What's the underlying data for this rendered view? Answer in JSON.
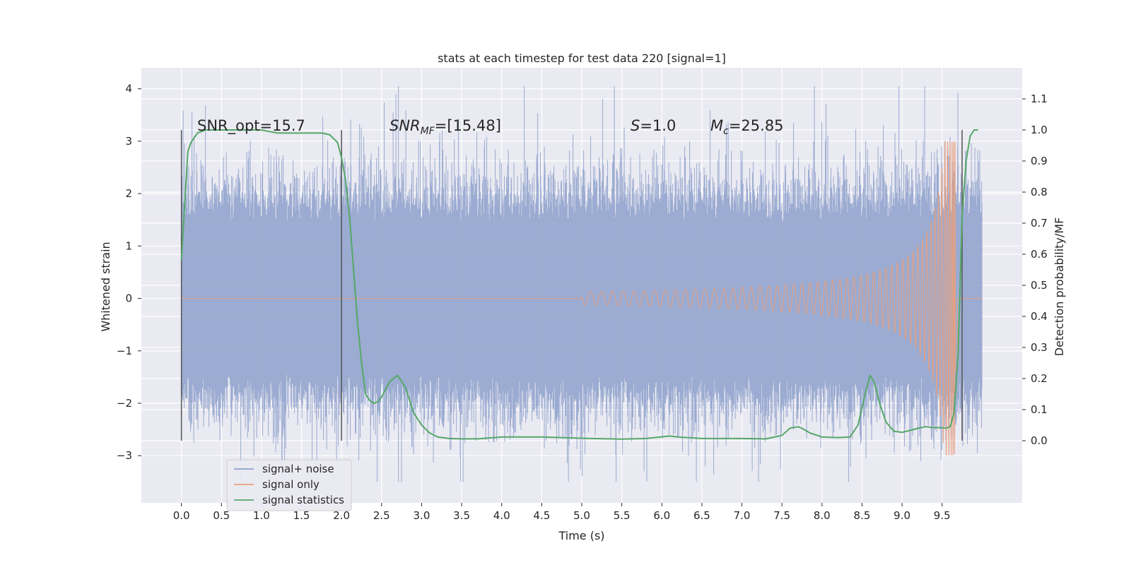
{
  "chart_data": {
    "type": "line",
    "title": "stats at each timestep for test data 220 [signal=1]",
    "xlabel": "Time (s)",
    "ylabel": "Whitened strain",
    "ylabel_right": "Detection probability/MF",
    "xlim": [
      -0.5,
      10.5
    ],
    "ylim": [
      -3.9,
      4.4
    ],
    "ylim_right": [
      -0.2,
      1.2
    ],
    "x_ticks": [
      0.0,
      0.5,
      1.0,
      1.5,
      2.0,
      2.5,
      3.0,
      3.5,
      4.0,
      4.5,
      5.0,
      5.5,
      6.0,
      6.5,
      7.0,
      7.5,
      8.0,
      8.5,
      9.0,
      9.5
    ],
    "x_tick_labels": [
      "0.0",
      "0.5",
      "1.0",
      "1.5",
      "2.0",
      "2.5",
      "3.0",
      "3.5",
      "4.0",
      "4.5",
      "5.0",
      "5.5",
      "6.0",
      "6.5",
      "7.0",
      "7.5",
      "8.0",
      "8.5",
      "9.0",
      "9.5"
    ],
    "y_ticks": [
      -3,
      -2,
      -1,
      0,
      1,
      2,
      3,
      4
    ],
    "y_tick_labels": [
      "−3",
      "−2",
      "−1",
      "0",
      "1",
      "2",
      "3",
      "4"
    ],
    "y_right_ticks": [
      0.0,
      0.1,
      0.2,
      0.3,
      0.4,
      0.5,
      0.6,
      0.7,
      0.8,
      0.9,
      1.0,
      1.1
    ],
    "y_right_tick_labels": [
      "0.0",
      "0.1",
      "0.2",
      "0.3",
      "0.4",
      "0.5",
      "0.6",
      "0.7",
      "0.8",
      "0.9",
      "1.0",
      "1.1"
    ],
    "grid": true,
    "legend_position": "lower-left",
    "annotations": {
      "snr_opt": "SNR_opt=15.7",
      "snr_mf_main": "SNR",
      "snr_mf_sub": "MF",
      "snr_mf_rest": "=[15.48]",
      "s_main": "S",
      "s_rest": "=1.0",
      "mc_main": "M",
      "mc_sub": "c",
      "mc_rest": "=25.85"
    },
    "vertical_lines_x": [
      0.0,
      2.0,
      9.75
    ],
    "series": [
      {
        "name": "signal+ noise",
        "color": "#8da0cb",
        "x_range": [
          0.0,
          10.0
        ],
        "core_amplitude": 1.45,
        "peak_max": 4.05,
        "peak_min": -3.5
      },
      {
        "name": "signal only",
        "color": "#e8a07e",
        "x_range": [
          0.0,
          10.0
        ],
        "chirp_start": 5.0,
        "merger_time": 9.67,
        "peak_max": 3.0,
        "peak_min": -3.25
      },
      {
        "name": "signal statistics",
        "color": "#55a868",
        "axis": "right",
        "x": [
          0.0,
          0.05,
          0.08,
          0.12,
          0.2,
          0.3,
          0.5,
          0.8,
          1.0,
          1.2,
          1.4,
          1.6,
          1.75,
          1.85,
          1.95,
          2.0,
          2.05,
          2.1,
          2.15,
          2.2,
          2.25,
          2.3,
          2.35,
          2.4,
          2.45,
          2.5,
          2.6,
          2.7,
          2.8,
          2.9,
          3.0,
          3.1,
          3.2,
          3.35,
          3.5,
          3.7,
          4.0,
          4.5,
          5.0,
          5.5,
          5.8,
          6.1,
          6.2,
          6.5,
          7.0,
          7.3,
          7.5,
          7.6,
          7.7,
          7.75,
          7.85,
          8.0,
          8.2,
          8.35,
          8.45,
          8.55,
          8.6,
          8.65,
          8.72,
          8.8,
          8.9,
          9.0,
          9.1,
          9.2,
          9.3,
          9.4,
          9.5,
          9.55,
          9.6,
          9.65,
          9.7,
          9.72,
          9.75,
          9.8,
          9.85,
          9.9,
          9.95
        ],
        "y": [
          0.58,
          0.8,
          0.93,
          0.96,
          0.99,
          1.0,
          1.0,
          1.0,
          1.0,
          0.99,
          0.99,
          0.99,
          0.99,
          0.985,
          0.96,
          0.91,
          0.84,
          0.72,
          0.55,
          0.38,
          0.25,
          0.15,
          0.13,
          0.12,
          0.125,
          0.14,
          0.19,
          0.21,
          0.17,
          0.09,
          0.05,
          0.025,
          0.012,
          0.007,
          0.006,
          0.006,
          0.012,
          0.012,
          0.008,
          0.005,
          0.007,
          0.015,
          0.012,
          0.007,
          0.007,
          0.006,
          0.017,
          0.04,
          0.045,
          0.04,
          0.025,
          0.012,
          0.01,
          0.012,
          0.05,
          0.16,
          0.21,
          0.19,
          0.12,
          0.06,
          0.03,
          0.027,
          0.033,
          0.04,
          0.045,
          0.042,
          0.042,
          0.04,
          0.045,
          0.09,
          0.28,
          0.45,
          0.72,
          0.9,
          0.98,
          1.0,
          1.0
        ]
      }
    ]
  }
}
